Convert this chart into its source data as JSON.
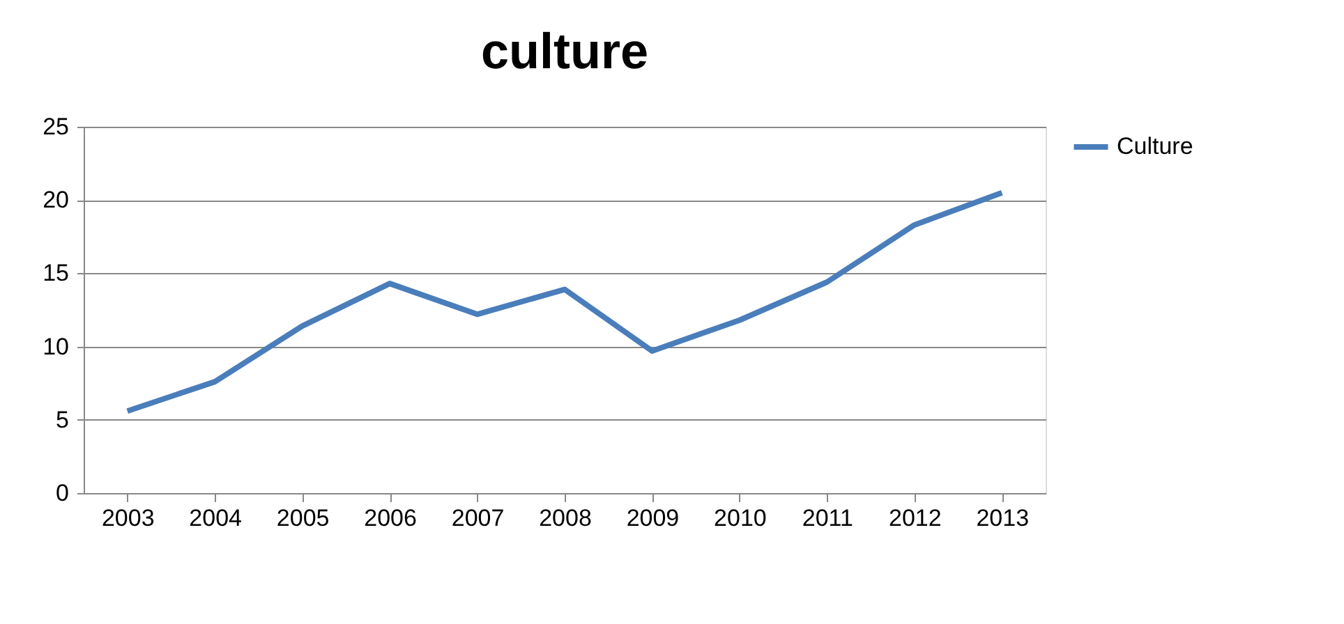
{
  "chart_data": {
    "type": "line",
    "title": "culture",
    "categories": [
      "2003",
      "2004",
      "2005",
      "2006",
      "2007",
      "2008",
      "2009",
      "2010",
      "2011",
      "2012",
      "2013"
    ],
    "series": [
      {
        "name": "Culture",
        "color": "#4a7ebb",
        "values": [
          5.6,
          7.6,
          11.4,
          14.3,
          12.2,
          13.9,
          9.7,
          11.8,
          14.4,
          18.3,
          20.5
        ]
      }
    ],
    "ylim": [
      0,
      25
    ],
    "yticks": [
      0,
      5,
      10,
      15,
      20,
      25
    ],
    "grid": "y",
    "legend": "right",
    "marker": "none",
    "line_style": "solid"
  }
}
